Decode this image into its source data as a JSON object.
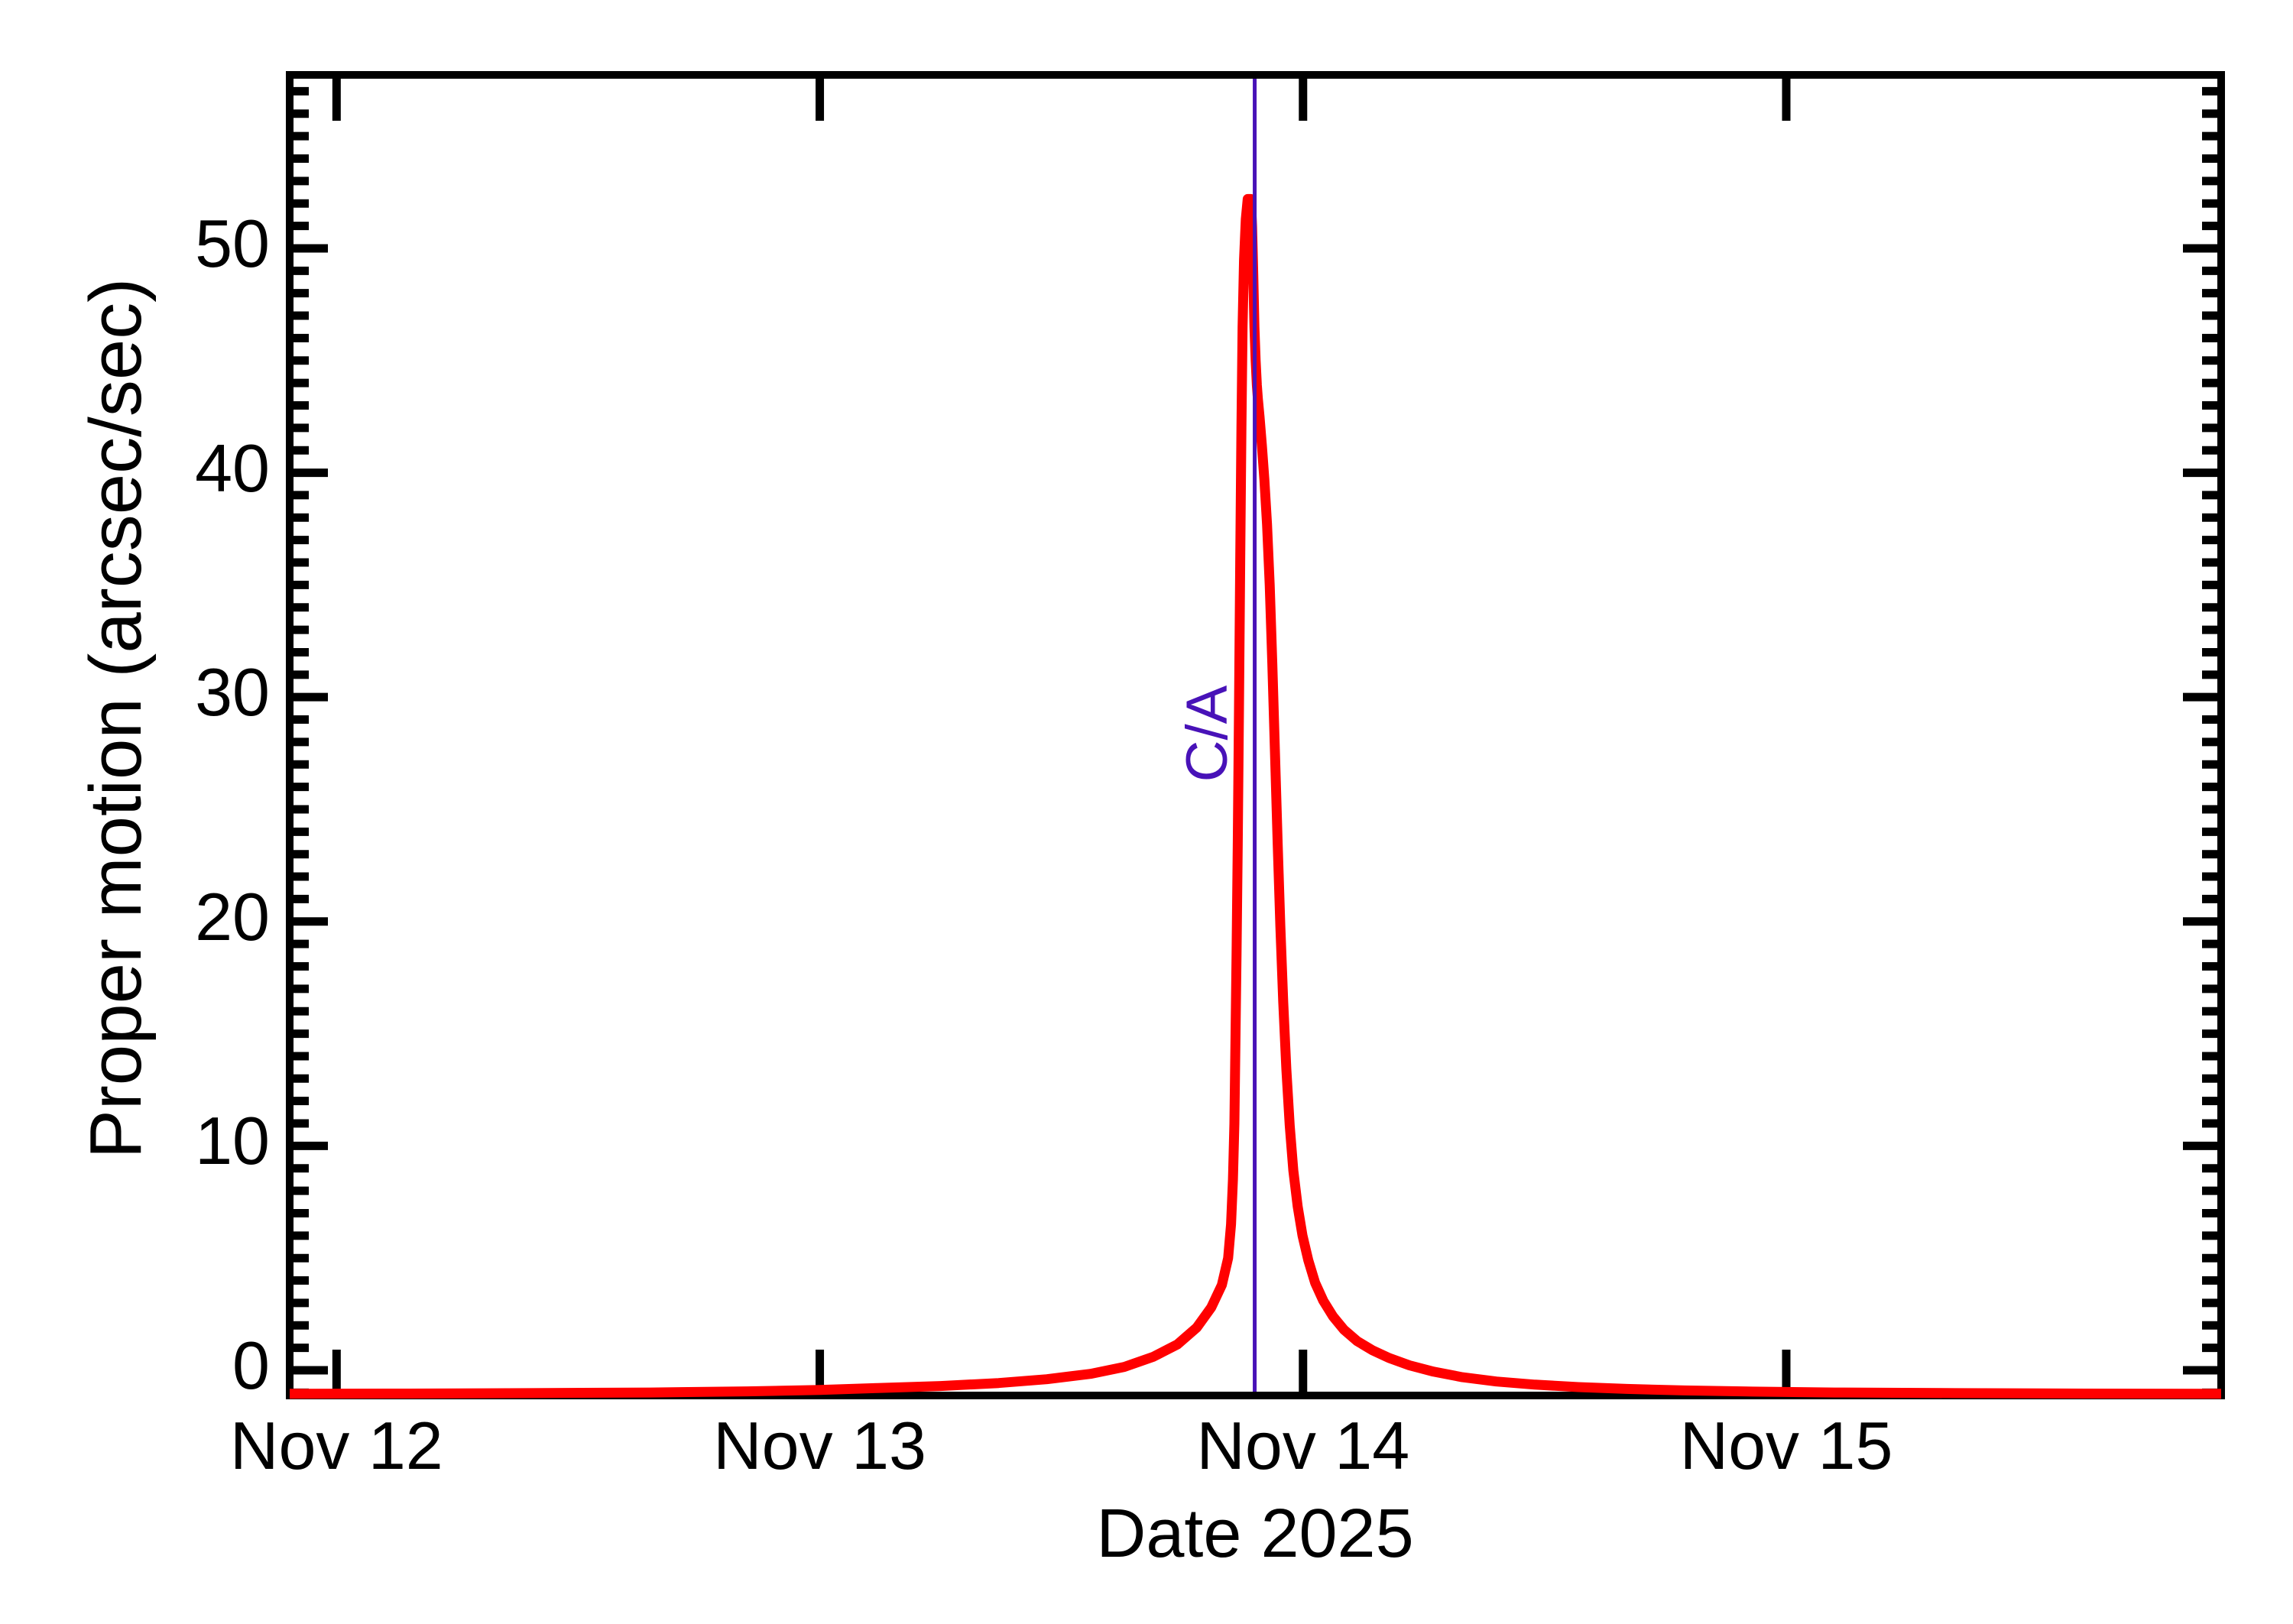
{
  "figure": {
    "xlabel": "Date 2025",
    "ylabel": "Proper motion (arcsec/sec)",
    "annotation_label": "C/A"
  },
  "chart_data": {
    "type": "line",
    "title": "",
    "xlabel": "Date 2025",
    "ylabel": "Proper motion (arcsec/sec)",
    "x_unit": "day of November 2025",
    "x_range": [
      11.903,
      15.9
    ],
    "y_range": [
      -1.124,
      57.73
    ],
    "grid": false,
    "legend": "none",
    "x_ticks": [
      {
        "value": 12,
        "label": "Nov 12"
      },
      {
        "value": 13,
        "label": "Nov 13"
      },
      {
        "value": 14,
        "label": "Nov 14"
      },
      {
        "value": 15,
        "label": "Nov 15"
      }
    ],
    "y_ticks": [
      {
        "value": 0,
        "label": "0"
      },
      {
        "value": 10,
        "label": "10"
      },
      {
        "value": 20,
        "label": "20"
      },
      {
        "value": 30,
        "label": "30"
      },
      {
        "value": 40,
        "label": "40"
      },
      {
        "value": 50,
        "label": "50"
      }
    ],
    "y_minor_step": 1,
    "x_minor_step": null,
    "colors": {
      "curve": "#ff0000",
      "annotation": "#4812b8",
      "axis": "#000000",
      "background": "#ffffff"
    },
    "annotation": {
      "label": "C/A",
      "x": 13.9,
      "peak_proper_motion": 52.2
    },
    "series": [
      {
        "name": "proper motion",
        "color": "#ff0000",
        "points": [
          [
            11.903,
            -1.05
          ],
          [
            12.15,
            -1.04
          ],
          [
            12.4,
            -1.02
          ],
          [
            12.65,
            -0.99
          ],
          [
            12.85,
            -0.94
          ],
          [
            13.0,
            -0.88
          ],
          [
            13.12,
            -0.79
          ],
          [
            13.25,
            -0.7
          ],
          [
            13.37,
            -0.57
          ],
          [
            13.47,
            -0.4
          ],
          [
            13.56,
            -0.16
          ],
          [
            13.63,
            0.15
          ],
          [
            13.69,
            0.6
          ],
          [
            13.74,
            1.15
          ],
          [
            13.78,
            1.9
          ],
          [
            13.81,
            2.8
          ],
          [
            13.832,
            3.8
          ],
          [
            13.845,
            5.0
          ],
          [
            13.851,
            6.5
          ],
          [
            13.855,
            8.5
          ],
          [
            13.858,
            11
          ],
          [
            13.86,
            14.5
          ],
          [
            13.8625,
            18.5
          ],
          [
            13.865,
            23.5
          ],
          [
            13.8675,
            29.5
          ],
          [
            13.87,
            36
          ],
          [
            13.8725,
            42
          ],
          [
            13.875,
            46.5
          ],
          [
            13.878,
            49.5
          ],
          [
            13.8815,
            51.3
          ],
          [
            13.8855,
            52.2
          ],
          [
            13.892,
            52.2
          ],
          [
            13.8945,
            51
          ],
          [
            13.897,
            48.8
          ],
          [
            13.8995,
            46.5
          ],
          [
            13.902,
            45
          ],
          [
            13.9045,
            43.9
          ],
          [
            13.9065,
            43.3
          ],
          [
            13.91,
            42.5
          ],
          [
            13.915,
            41.2
          ],
          [
            13.92,
            39.7
          ],
          [
            13.9255,
            37.7
          ],
          [
            13.931,
            35
          ],
          [
            13.9365,
            31.5
          ],
          [
            13.942,
            27.5
          ],
          [
            13.9475,
            23.5
          ],
          [
            13.953,
            19.8
          ],
          [
            13.959,
            16.4
          ],
          [
            13.9655,
            13.4
          ],
          [
            13.9725,
            10.9
          ],
          [
            13.98,
            8.9
          ],
          [
            13.989,
            7.3
          ],
          [
            13.999,
            6.0
          ],
          [
            14.011,
            4.9
          ],
          [
            14.025,
            3.9
          ],
          [
            14.042,
            3.1
          ],
          [
            14.062,
            2.4
          ],
          [
            14.085,
            1.8
          ],
          [
            14.112,
            1.3
          ],
          [
            14.143,
            0.9
          ],
          [
            14.178,
            0.55
          ],
          [
            14.22,
            0.22
          ],
          [
            14.27,
            -0.06
          ],
          [
            14.33,
            -0.31
          ],
          [
            14.4,
            -0.5
          ],
          [
            14.48,
            -0.64
          ],
          [
            14.57,
            -0.75
          ],
          [
            14.67,
            -0.83
          ],
          [
            14.79,
            -0.9
          ],
          [
            14.93,
            -0.95
          ],
          [
            15.1,
            -0.99
          ],
          [
            15.35,
            -1.02
          ],
          [
            15.62,
            -1.04
          ],
          [
            15.9,
            -1.05
          ]
        ]
      }
    ]
  }
}
